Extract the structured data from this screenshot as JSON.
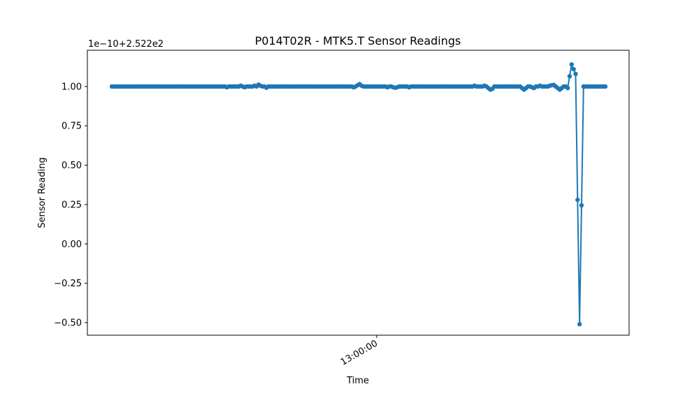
{
  "chart_data": {
    "type": "line",
    "title": "P014T02R - MTK5.T Sensor Readings",
    "xlabel": "Time",
    "ylabel": "Sensor Reading",
    "offset_label": "1e−10+2.522e2",
    "x_ticks": [
      "13:00:00"
    ],
    "y_ticks": [
      "−0.50",
      "−0.25",
      "0.00",
      "0.25",
      "0.50",
      "0.75",
      "1.00"
    ],
    "ylim": [
      -0.58,
      1.23
    ],
    "grid": false,
    "color": "#1f77b4",
    "marker": "circle",
    "series": [
      {
        "values": [
          1.0,
          1.0,
          1.0,
          1.0,
          1.0,
          1.0,
          1.0,
          1.0,
          1.0,
          1.0,
          1.0,
          1.0,
          1.0,
          1.0,
          1.0,
          1.0,
          1.0,
          1.0,
          1.0,
          1.0,
          1.0,
          1.0,
          1.0,
          1.0,
          1.0,
          1.0,
          1.0,
          1.0,
          1.0,
          1.0,
          1.0,
          1.0,
          1.0,
          1.0,
          1.0,
          1.0,
          1.0,
          1.0,
          1.0,
          1.0,
          1.0,
          1.0,
          1.0,
          1.0,
          1.0,
          1.0,
          1.0,
          1.0,
          1.0,
          1.0,
          1.0,
          1.0,
          1.0,
          1.0,
          1.0,
          1.0,
          1.0,
          1.0,
          0.995,
          1.0,
          1.0,
          1.0,
          1.0,
          1.0,
          1.0,
          1.005,
          1.0,
          0.995,
          1.0,
          1.0,
          1.0,
          1.0,
          1.005,
          1.0,
          1.012,
          1.005,
          1.0,
          1.0,
          0.992,
          1.0,
          1.0,
          1.0,
          1.0,
          1.0,
          1.0,
          1.0,
          1.0,
          1.0,
          1.0,
          1.0,
          1.0,
          1.0,
          1.0,
          1.0,
          1.0,
          1.0,
          1.0,
          1.0,
          1.0,
          1.0,
          1.0,
          1.0,
          1.0,
          1.0,
          1.0,
          1.0,
          1.0,
          1.0,
          1.0,
          1.0,
          1.0,
          1.0,
          1.0,
          1.0,
          1.0,
          1.0,
          1.0,
          1.0,
          1.0,
          1.0,
          1.0,
          1.0,
          0.995,
          1.0,
          1.008,
          1.015,
          1.005,
          1.0,
          1.0,
          1.0,
          1.0,
          1.0,
          1.0,
          1.0,
          1.0,
          1.0,
          1.0,
          1.0,
          1.0,
          0.995,
          1.0,
          1.0,
          0.995,
          0.992,
          0.995,
          1.0,
          1.0,
          1.0,
          1.0,
          1.0,
          0.995,
          1.0,
          1.0,
          1.0,
          1.0,
          1.0,
          1.0,
          1.0,
          1.0,
          1.0,
          1.0,
          1.0,
          1.0,
          1.0,
          1.0,
          1.0,
          1.0,
          1.0,
          1.0,
          1.0,
          1.0,
          1.0,
          1.0,
          1.0,
          1.0,
          1.0,
          1.0,
          1.0,
          1.0,
          1.0,
          1.0,
          1.0,
          1.0,
          1.005,
          1.0,
          1.0,
          1.0,
          1.0,
          1.005,
          1.0,
          0.99,
          0.98,
          0.985,
          1.0,
          1.0,
          1.0,
          1.0,
          1.0,
          1.0,
          1.0,
          1.0,
          1.0,
          1.0,
          1.0,
          1.0,
          1.0,
          1.0,
          0.99,
          0.98,
          0.99,
          1.0,
          1.0,
          0.995,
          0.99,
          1.0,
          1.0,
          1.005,
          1.0,
          1.0,
          1.0,
          1.0,
          1.005,
          1.008,
          1.01,
          1.0,
          0.99,
          0.98,
          0.99,
          1.0,
          1.0,
          0.99,
          1.065,
          1.14,
          1.11,
          1.08,
          0.28,
          -0.51,
          0.245,
          1.0,
          1.0,
          1.0,
          1.0,
          1.0,
          1.0,
          1.0,
          1.0,
          1.0,
          1.0,
          1.0,
          1.0
        ]
      }
    ]
  }
}
